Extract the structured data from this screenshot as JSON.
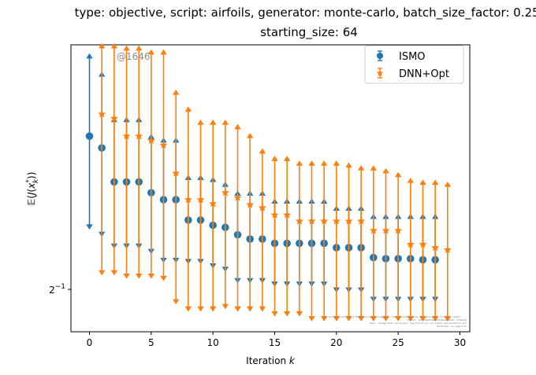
{
  "chart_data": {
    "type": "scatter",
    "title_line1": "type: objective, script: airfoils, generator: monte-carlo, batch_size_factor: 0.25,",
    "title_line2": "starting_size: 64",
    "xlabel": "Iteration k",
    "ylabel": "E(J(x_k*))",
    "xlim": [
      -1.5,
      30.8
    ],
    "ylim": [
      0.465,
      0.76
    ],
    "yscale": "log2",
    "x_ticks": [
      0,
      5,
      10,
      15,
      20,
      25,
      30
    ],
    "x_tick_labels": [
      "0",
      "5",
      "10",
      "15",
      "20",
      "25",
      "30"
    ],
    "y_ticks": [
      0.5
    ],
    "y_tick_labels": [
      "2^-1"
    ],
    "grid": false,
    "legend_position": "top-right",
    "annotation": "@1646",
    "footnote_lines": [
      "By Kjetil Olsen Lye @ ETHZ <kjetil.o.lye@gmail.com>. Ensemble Deep Nn. Generated from git commit ...",
      "Commit: 16d134b0f0ee09bf0e4b2b0e5..a754316",
      "Repo: git@github.com:kjetil-lye/iterative_surrogate_optimization.git",
      "Hostname: eu-login-27"
    ],
    "series": [
      {
        "name": "ISMO",
        "color": "#1f77b4",
        "marker": "circle",
        "x": [
          0,
          1,
          2,
          3,
          4,
          5,
          6,
          7,
          8,
          9,
          10,
          11,
          12,
          13,
          14,
          15,
          16,
          17,
          18,
          19,
          20,
          21,
          22,
          23,
          24,
          25,
          26,
          27,
          28
        ],
        "mean": [
          0.65,
          0.637,
          0.601,
          0.601,
          0.601,
          0.59,
          0.583,
          0.583,
          0.563,
          0.563,
          0.558,
          0.556,
          0.549,
          0.545,
          0.545,
          0.541,
          0.541,
          0.541,
          0.541,
          0.541,
          0.537,
          0.537,
          0.537,
          0.528,
          0.527,
          0.527,
          0.527,
          0.526,
          0.526
        ],
        "upper": [
          0.745,
          0.722,
          0.668,
          0.668,
          0.668,
          0.649,
          0.645,
          0.645,
          0.605,
          0.605,
          0.603,
          0.598,
          0.589,
          0.589,
          0.589,
          0.581,
          0.581,
          0.581,
          0.581,
          0.581,
          0.574,
          0.574,
          0.574,
          0.566,
          0.566,
          0.566,
          0.566,
          0.566,
          0.566
        ],
        "lower": [
          0.557,
          0.55,
          0.539,
          0.539,
          0.539,
          0.534,
          0.526,
          0.526,
          0.525,
          0.525,
          0.521,
          0.518,
          0.508,
          0.508,
          0.508,
          0.505,
          0.505,
          0.505,
          0.505,
          0.505,
          0.5,
          0.5,
          0.5,
          0.492,
          0.492,
          0.492,
          0.492,
          0.492,
          0.492
        ]
      },
      {
        "name": "DNN+Opt",
        "color": "#ff7f0e",
        "marker": "star",
        "x": [
          1,
          2,
          3,
          4,
          5,
          6,
          7,
          8,
          9,
          10,
          11,
          12,
          13,
          14,
          15,
          16,
          17,
          18,
          19,
          20,
          21,
          22,
          23,
          24,
          25,
          26,
          27,
          28,
          29
        ],
        "mean": [
          0.675,
          0.67,
          0.65,
          0.65,
          0.645,
          0.64,
          0.61,
          0.583,
          0.583,
          0.579,
          0.59,
          0.585,
          0.578,
          0.575,
          0.568,
          0.568,
          0.562,
          0.562,
          0.562,
          0.562,
          0.562,
          0.562,
          0.553,
          0.553,
          0.553,
          0.54,
          0.54,
          0.537,
          0.535
        ],
        "upper": [
          0.758,
          0.758,
          0.755,
          0.755,
          0.75,
          0.75,
          0.7,
          0.68,
          0.665,
          0.665,
          0.665,
          0.66,
          0.65,
          0.633,
          0.625,
          0.625,
          0.62,
          0.62,
          0.62,
          0.62,
          0.618,
          0.615,
          0.615,
          0.612,
          0.608,
          0.602,
          0.6,
          0.6,
          0.598
        ],
        "lower": [
          0.515,
          0.515,
          0.512,
          0.512,
          0.512,
          0.51,
          0.49,
          0.484,
          0.484,
          0.484,
          0.486,
          0.484,
          0.484,
          0.484,
          0.48,
          0.48,
          0.48,
          0.476,
          0.476,
          0.476,
          0.476,
          0.476,
          0.476,
          0.476,
          0.476,
          0.476,
          0.476,
          0.476,
          0.476
        ]
      }
    ]
  }
}
